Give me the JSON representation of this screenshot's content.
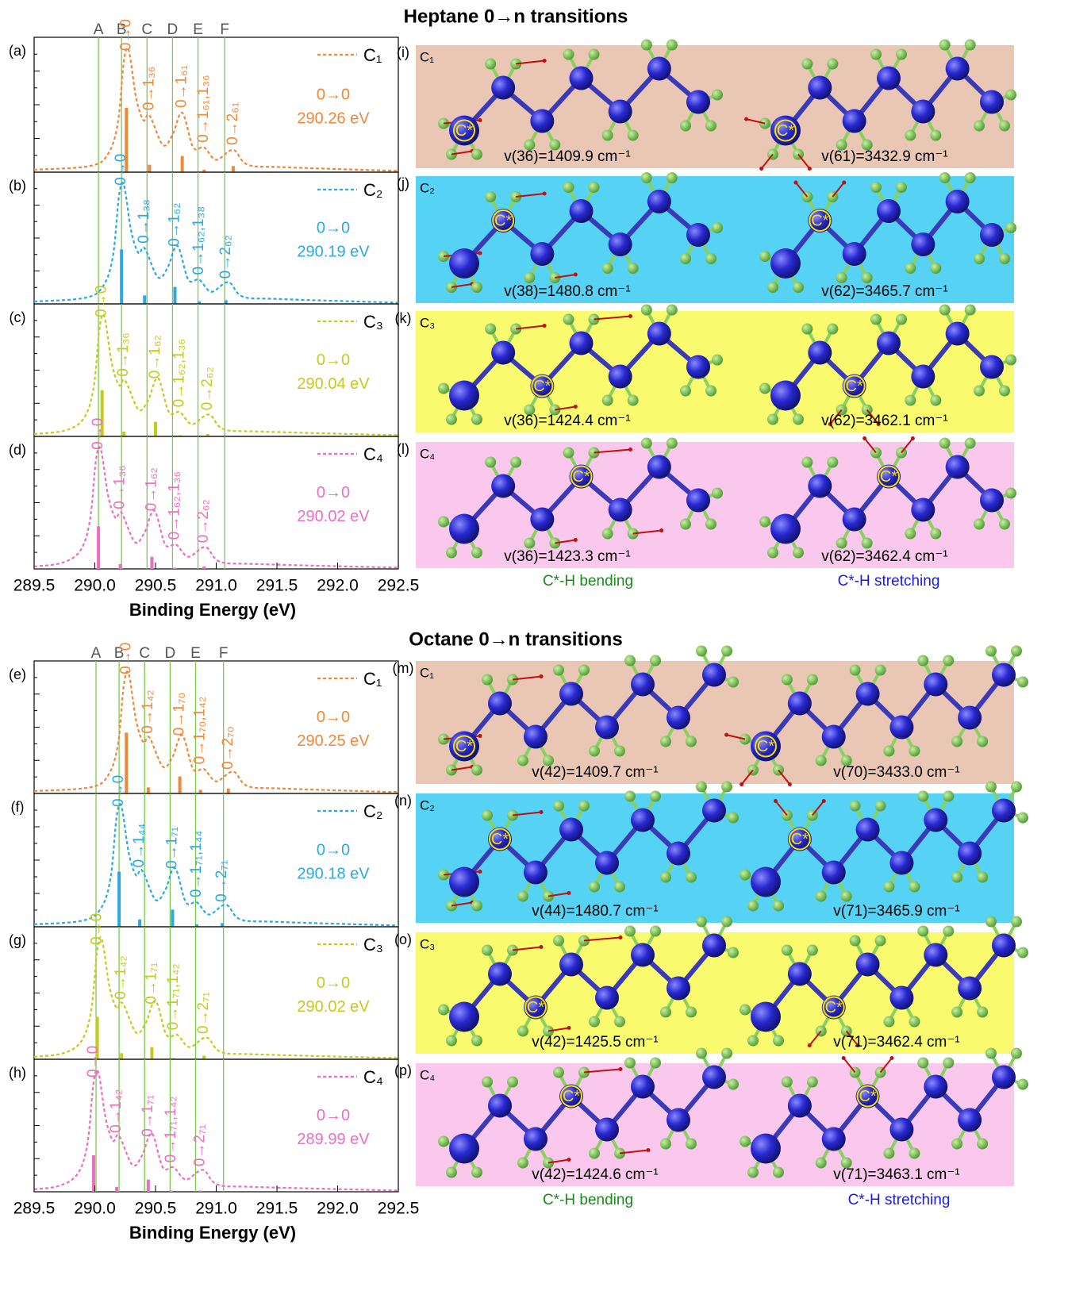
{
  "sections": [
    {
      "title": "Heptane 0→n transitions",
      "captions": [
        "C*-H bending",
        "C*-H stretching"
      ]
    },
    {
      "title": "Octane 0→n transitions",
      "captions": [
        "C*-H bending",
        "C*-H stretching"
      ]
    }
  ],
  "chart_data": [
    {
      "type": "line",
      "panel": "(a)",
      "xlim": [
        289.5,
        292.5
      ],
      "ylim": [
        0,
        1.05
      ],
      "series": [
        {
          "name": "C₁",
          "color": "#f0883a",
          "x": [
            289.5,
            289.96,
            290.11,
            290.19,
            290.24,
            290.28,
            290.34,
            290.4,
            290.45,
            290.56,
            290.64,
            290.72,
            290.81,
            290.9,
            291.0,
            291.14,
            291.26,
            291.56,
            292.5
          ],
          "values": [
            0.02,
            0.05,
            0.15,
            0.4,
            0.9,
            0.98,
            0.6,
            0.42,
            0.46,
            0.22,
            0.3,
            0.48,
            0.2,
            0.2,
            0.1,
            0.18,
            0.06,
            0.04,
            0.01
          ]
        }
      ],
      "sticks": {
        "x": [
          290.26,
          290.45,
          290.72,
          290.9,
          291.14
        ],
        "values": [
          0.52,
          0.06,
          0.13,
          0.02,
          0.05
        ],
        "labels": [
          "0→0",
          "0→1₃₆",
          "0→1₆₁",
          "0→1₆₁,1₃₆",
          "0→2₆₁"
        ]
      },
      "annotation": [
        "0→0",
        "290.26 eV"
      ],
      "vlines": [
        290.03,
        290.22,
        290.43,
        290.64,
        290.85,
        291.07
      ],
      "vline_labels": [
        "A",
        "B",
        "C",
        "D",
        "E",
        "F"
      ],
      "vline_color": "#7ec850"
    },
    {
      "type": "line",
      "panel": "(b)",
      "xlim": [
        289.5,
        292.5
      ],
      "ylim": [
        0,
        1.05
      ],
      "series": [
        {
          "name": "C₂",
          "color": "#2aa9e0",
          "x": [
            289.5,
            289.92,
            290.07,
            290.15,
            290.2,
            290.24,
            290.3,
            290.36,
            290.41,
            290.52,
            290.6,
            290.68,
            290.77,
            290.86,
            290.96,
            291.1,
            291.22,
            291.52,
            292.5
          ],
          "values": [
            0.02,
            0.05,
            0.15,
            0.4,
            0.9,
            0.98,
            0.6,
            0.42,
            0.46,
            0.22,
            0.3,
            0.48,
            0.2,
            0.2,
            0.1,
            0.18,
            0.06,
            0.04,
            0.01
          ]
        }
      ],
      "sticks": {
        "x": [
          290.22,
          290.41,
          290.66,
          290.86,
          291.08
        ],
        "values": [
          0.45,
          0.07,
          0.14,
          0.02,
          0.03
        ],
        "labels": [
          "0→0",
          "0→1₃₈",
          "0→1₆₂",
          "0→1₆₂,1₃₈",
          "0→2₆₂"
        ]
      },
      "annotation": [
        "0→0",
        "290.19 eV"
      ],
      "vlines": [
        290.03,
        290.22,
        290.43,
        290.64,
        290.85,
        291.07
      ],
      "vline_color": "#7ec850"
    },
    {
      "type": "line",
      "panel": "(c)",
      "xlim": [
        289.5,
        292.5
      ],
      "ylim": [
        0,
        1.05
      ],
      "series": [
        {
          "name": "C₃",
          "color": "#c8c81e",
          "x": [
            289.5,
            289.76,
            289.91,
            289.99,
            290.04,
            290.08,
            290.14,
            290.2,
            290.25,
            290.36,
            290.44,
            290.52,
            290.61,
            290.7,
            290.8,
            290.94,
            291.06,
            291.36,
            292.5
          ],
          "values": [
            0.02,
            0.05,
            0.15,
            0.4,
            0.9,
            0.98,
            0.6,
            0.42,
            0.46,
            0.22,
            0.3,
            0.48,
            0.2,
            0.2,
            0.1,
            0.18,
            0.06,
            0.04,
            0.01
          ]
        }
      ],
      "sticks": {
        "x": [
          290.06,
          290.24,
          290.5,
          290.7,
          290.93
        ],
        "values": [
          0.38,
          0.04,
          0.12,
          0.01,
          0.02
        ],
        "labels": [
          "0→0",
          "0→1₃₆",
          "0→1₆₂",
          "0→1₆₂,1₃₆",
          "0→2₆₂"
        ]
      },
      "annotation": [
        "0→0",
        "290.04 eV"
      ],
      "vlines": [
        290.03,
        290.22,
        290.43,
        290.64,
        290.85,
        291.07
      ],
      "vline_color": "#7ec850"
    },
    {
      "type": "line",
      "panel": "(d)",
      "xlim": [
        289.5,
        292.5
      ],
      "ylim": [
        0,
        1.05
      ],
      "series": [
        {
          "name": "C₄",
          "color": "#ec6ec4",
          "x": [
            289.5,
            289.73,
            289.88,
            289.96,
            290.01,
            290.05,
            290.11,
            290.17,
            290.22,
            290.33,
            290.41,
            290.49,
            290.58,
            290.67,
            290.77,
            290.91,
            291.03,
            291.33,
            292.5
          ],
          "values": [
            0.02,
            0.05,
            0.15,
            0.4,
            0.9,
            0.98,
            0.6,
            0.42,
            0.46,
            0.22,
            0.3,
            0.48,
            0.2,
            0.2,
            0.1,
            0.18,
            0.06,
            0.04,
            0.01
          ]
        }
      ],
      "sticks": {
        "x": [
          290.03,
          290.21,
          290.47,
          290.66,
          290.9
        ],
        "values": [
          0.35,
          0.04,
          0.1,
          0.01,
          0.02
        ],
        "labels": [
          "0→0",
          "0→1₃₆",
          "0→1₆₂",
          "0→1₆₂,1₃₆",
          "0→2₆₂"
        ]
      },
      "annotation": [
        "0→0",
        "290.02 eV"
      ],
      "vlines": [
        290.03,
        290.22,
        290.43,
        290.64,
        290.85,
        291.07
      ],
      "vline_color": "#7ec850",
      "xticks": [
        289.5,
        {
          "value": 290,
          "label": "290.0"
        },
        290.5,
        {
          "value": 291,
          "label": "291.0"
        },
        291.5,
        {
          "value": 292,
          "label": "292.0"
        },
        292.5
      ],
      "xlabel": "Binding Energy (eV)"
    },
    {
      "type": "line",
      "panel": "(e)",
      "xlim": [
        289.5,
        292.5
      ],
      "ylim": [
        0,
        1.05
      ],
      "series": [
        {
          "name": "C₁",
          "color": "#f0883a",
          "x": [
            289.5,
            289.96,
            290.11,
            290.19,
            290.24,
            290.28,
            290.34,
            290.4,
            290.45,
            290.56,
            290.64,
            290.72,
            290.81,
            290.9,
            291.0,
            291.14,
            291.26,
            291.56,
            292.5
          ],
          "values": [
            0.02,
            0.05,
            0.15,
            0.4,
            0.9,
            0.98,
            0.6,
            0.42,
            0.46,
            0.22,
            0.3,
            0.48,
            0.2,
            0.2,
            0.1,
            0.18,
            0.06,
            0.04,
            0.01
          ]
        }
      ],
      "sticks": {
        "x": [
          290.26,
          290.44,
          290.7,
          290.87,
          291.1
        ],
        "values": [
          0.5,
          0.05,
          0.14,
          0.03,
          0.04
        ],
        "labels": [
          "0→0",
          "0→1₄₂",
          "0→1₇₀",
          "0→1₇₀,1₄₂",
          "0→2₇₀"
        ]
      },
      "annotation": [
        "0→0",
        "290.25 eV"
      ],
      "vlines": [
        290.01,
        290.2,
        290.41,
        290.62,
        290.83,
        291.06
      ],
      "vline_labels": [
        "A",
        "B",
        "C",
        "D",
        "E",
        "F"
      ],
      "vline_color": "#7ec850"
    },
    {
      "type": "line",
      "panel": "(f)",
      "xlim": [
        289.5,
        292.5
      ],
      "ylim": [
        0,
        1.05
      ],
      "series": [
        {
          "name": "C₂",
          "color": "#2aa9e0",
          "x": [
            289.5,
            289.9,
            290.05,
            290.13,
            290.18,
            290.22,
            290.28,
            290.34,
            290.39,
            290.5,
            290.58,
            290.66,
            290.75,
            290.84,
            290.94,
            291.08,
            291.2,
            291.5,
            292.5
          ],
          "values": [
            0.02,
            0.05,
            0.15,
            0.4,
            0.9,
            0.98,
            0.6,
            0.42,
            0.46,
            0.22,
            0.3,
            0.48,
            0.2,
            0.2,
            0.1,
            0.18,
            0.06,
            0.04,
            0.01
          ]
        }
      ],
      "sticks": {
        "x": [
          290.2,
          290.37,
          290.64,
          290.84,
          291.05
        ],
        "values": [
          0.45,
          0.06,
          0.14,
          0.02,
          0.03
        ],
        "labels": [
          "0→0",
          "0→1₄₄",
          "0→1₇₁",
          "0→1₇₁,1₄₄",
          "0→2₇₁"
        ]
      },
      "annotation": [
        "0→0",
        "290.18 eV"
      ],
      "vlines": [
        290.01,
        290.2,
        290.41,
        290.62,
        290.83,
        291.06
      ],
      "vline_color": "#7ec850"
    },
    {
      "type": "line",
      "panel": "(g)",
      "xlim": [
        289.5,
        292.5
      ],
      "ylim": [
        0,
        1.05
      ],
      "series": [
        {
          "name": "C₃",
          "color": "#c8c81e",
          "x": [
            289.5,
            289.74,
            289.89,
            289.97,
            290.02,
            290.06,
            290.12,
            290.18,
            290.23,
            290.34,
            290.42,
            290.5,
            290.59,
            290.68,
            290.78,
            290.92,
            291.04,
            291.34,
            292.5
          ],
          "values": [
            0.02,
            0.05,
            0.15,
            0.4,
            0.9,
            0.98,
            0.6,
            0.42,
            0.46,
            0.22,
            0.3,
            0.48,
            0.2,
            0.2,
            0.1,
            0.18,
            0.06,
            0.04,
            0.01
          ]
        }
      ],
      "sticks": {
        "x": [
          290.02,
          290.22,
          290.47,
          290.65,
          290.9
        ],
        "values": [
          0.35,
          0.05,
          0.1,
          0.01,
          0.03
        ],
        "labels": [
          "0→0",
          "0→1₄₂",
          "0→1₇₁",
          "0→1₇₁,1₄₂",
          "0→2₇₁"
        ]
      },
      "annotation": [
        "0→0",
        "290.02 eV"
      ],
      "vlines": [
        290.01,
        290.2,
        290.41,
        290.62,
        290.83,
        291.06
      ],
      "vline_color": "#7ec850"
    },
    {
      "type": "line",
      "panel": "(h)",
      "xlim": [
        289.5,
        292.5
      ],
      "ylim": [
        0,
        1.05
      ],
      "series": [
        {
          "name": "C₄",
          "color": "#ec6ec4",
          "x": [
            289.5,
            289.71,
            289.86,
            289.94,
            289.99,
            290.03,
            290.09,
            290.15,
            290.2,
            290.31,
            290.39,
            290.47,
            290.56,
            290.65,
            290.75,
            290.89,
            291.01,
            291.31,
            292.5
          ],
          "values": [
            0.02,
            0.05,
            0.15,
            0.4,
            0.9,
            0.98,
            0.6,
            0.42,
            0.46,
            0.22,
            0.3,
            0.48,
            0.2,
            0.2,
            0.1,
            0.18,
            0.06,
            0.04,
            0.01
          ]
        }
      ],
      "sticks": {
        "x": [
          289.99,
          290.18,
          290.44,
          290.63,
          290.87
        ],
        "values": [
          0.3,
          0.04,
          0.1,
          0.01,
          0.01
        ],
        "labels": [
          "0→0",
          "0→1₄₂",
          "0→1₇₁",
          "0→1₇₁,1₄₂",
          "0→2₇₁"
        ]
      },
      "annotation": [
        "0→0",
        "289.99 eV"
      ],
      "vlines": [
        290.01,
        290.2,
        290.41,
        290.62,
        290.83,
        291.06
      ],
      "vline_color": "#7ec850",
      "xticks": [
        289.5,
        {
          "value": 290,
          "label": "290.0"
        },
        290.5,
        {
          "value": 291,
          "label": "291.0"
        },
        291.5,
        {
          "value": 292,
          "label": "292.0"
        },
        292.5
      ],
      "xlabel": "Binding Energy (eV)"
    }
  ],
  "molecule_panels": [
    {
      "label": "(i)",
      "carbon": "C₁",
      "marker": "C*",
      "color": "#eac7b4",
      "modes": [
        "v(36)=1409.9 cm⁻¹",
        "v(61)=3432.9 cm⁻¹"
      ]
    },
    {
      "label": "(j)",
      "carbon": "C₂",
      "marker": "C*",
      "color": "#56d2f5",
      "modes": [
        "v(38)=1480.8 cm⁻¹",
        "v(62)=3465.7 cm⁻¹"
      ]
    },
    {
      "label": "(k)",
      "carbon": "C₃",
      "marker": "C*",
      "color": "#fafa6e",
      "modes": [
        "v(36)=1424.4 cm⁻¹",
        "v(62)=3462.1 cm⁻¹"
      ]
    },
    {
      "label": "(l)",
      "carbon": "C₄",
      "marker": "C*",
      "color": "#fac8ec",
      "modes": [
        "v(36)=1423.3 cm⁻¹",
        "v(62)=3462.4 cm⁻¹"
      ]
    },
    {
      "label": "(m)",
      "carbon": "C₁",
      "marker": "C*",
      "color": "#eac7b4",
      "modes": [
        "v(42)=1409.7 cm⁻¹",
        "v(70)=3433.0 cm⁻¹"
      ]
    },
    {
      "label": "(n)",
      "carbon": "C₂",
      "marker": "C*",
      "color": "#56d2f5",
      "modes": [
        "v(44)=1480.7 cm⁻¹",
        "v(71)=3465.9 cm⁻¹"
      ]
    },
    {
      "label": "(o)",
      "carbon": "C₃",
      "marker": "C*",
      "color": "#fafa6e",
      "modes": [
        "v(42)=1425.5 cm⁻¹",
        "v(71)=3462.4 cm⁻¹"
      ]
    },
    {
      "label": "(p)",
      "carbon": "C₄",
      "marker": "C*",
      "color": "#fac8ec",
      "modes": [
        "v(42)=1424.6 cm⁻¹",
        "v(71)=3463.1 cm⁻¹"
      ]
    }
  ]
}
